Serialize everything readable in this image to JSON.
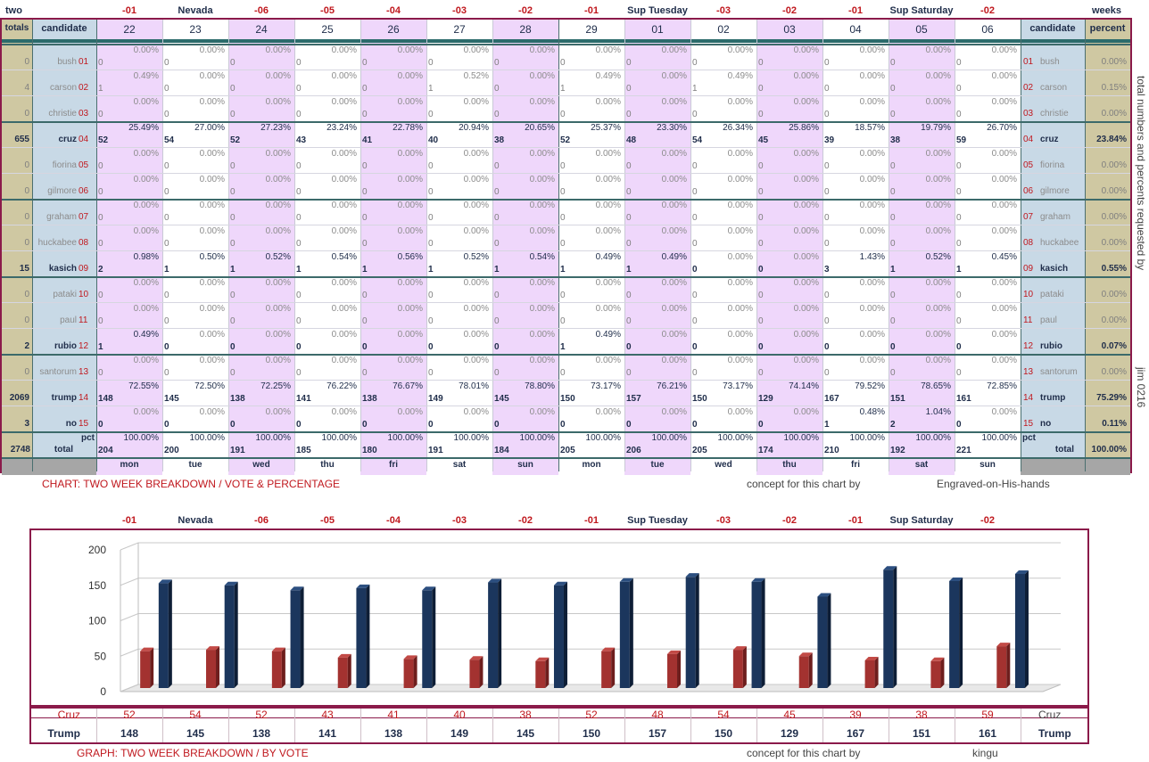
{
  "top_labels": {
    "left": "two",
    "right": "weeks",
    "days": [
      "-01",
      "Nevada",
      "-06",
      "-05",
      "-04",
      "-03",
      "-02",
      "-01",
      "Sup Tuesday",
      "-03",
      "-02",
      "-01",
      "Sup Saturday",
      "-02"
    ]
  },
  "header": {
    "totals": "totals",
    "candidate": "candidate",
    "candidate_right": "candidate",
    "percent": "percent",
    "dates": [
      "22",
      "23",
      "24",
      "25",
      "26",
      "27",
      "28",
      "29",
      "01",
      "02",
      "03",
      "04",
      "05",
      "06"
    ]
  },
  "rows": [
    {
      "num": "01",
      "name": "bush",
      "total": "0",
      "pct": "0.00%",
      "active": false,
      "votes": [
        "0",
        "0",
        "0",
        "0",
        "0",
        "0",
        "0",
        "0",
        "0",
        "0",
        "0",
        "0",
        "0",
        "0"
      ],
      "pcts": [
        "0.00%",
        "0.00%",
        "0.00%",
        "0.00%",
        "0.00%",
        "0.00%",
        "0.00%",
        "0.00%",
        "0.00%",
        "0.00%",
        "0.00%",
        "0.00%",
        "0.00%",
        "0.00%"
      ]
    },
    {
      "num": "02",
      "name": "carson",
      "total": "4",
      "pct": "0.15%",
      "active": false,
      "votes": [
        "1",
        "0",
        "0",
        "0",
        "0",
        "1",
        "0",
        "1",
        "0",
        "1",
        "0",
        "0",
        "0",
        "0"
      ],
      "pcts": [
        "0.49%",
        "0.00%",
        "0.00%",
        "0.00%",
        "0.00%",
        "0.52%",
        "0.00%",
        "0.49%",
        "0.00%",
        "0.49%",
        "0.00%",
        "0.00%",
        "0.00%",
        "0.00%"
      ]
    },
    {
      "num": "03",
      "name": "christie",
      "total": "0",
      "pct": "0.00%",
      "active": false,
      "votes": [
        "0",
        "0",
        "0",
        "0",
        "0",
        "0",
        "0",
        "0",
        "0",
        "0",
        "0",
        "0",
        "0",
        "0"
      ],
      "pcts": [
        "0.00%",
        "0.00%",
        "0.00%",
        "0.00%",
        "0.00%",
        "0.00%",
        "0.00%",
        "0.00%",
        "0.00%",
        "0.00%",
        "0.00%",
        "0.00%",
        "0.00%",
        "0.00%"
      ]
    },
    {
      "num": "04",
      "name": "cruz",
      "total": "655",
      "pct": "23.84%",
      "active": true,
      "votes": [
        "52",
        "54",
        "52",
        "43",
        "41",
        "40",
        "38",
        "52",
        "48",
        "54",
        "45",
        "39",
        "38",
        "59"
      ],
      "pcts": [
        "25.49%",
        "27.00%",
        "27.23%",
        "23.24%",
        "22.78%",
        "20.94%",
        "20.65%",
        "25.37%",
        "23.30%",
        "26.34%",
        "25.86%",
        "18.57%",
        "19.79%",
        "26.70%"
      ]
    },
    {
      "num": "05",
      "name": "fiorina",
      "total": "0",
      "pct": "0.00%",
      "active": false,
      "votes": [
        "0",
        "0",
        "0",
        "0",
        "0",
        "0",
        "0",
        "0",
        "0",
        "0",
        "0",
        "0",
        "0",
        "0"
      ],
      "pcts": [
        "0.00%",
        "0.00%",
        "0.00%",
        "0.00%",
        "0.00%",
        "0.00%",
        "0.00%",
        "0.00%",
        "0.00%",
        "0.00%",
        "0.00%",
        "0.00%",
        "0.00%",
        "0.00%"
      ]
    },
    {
      "num": "06",
      "name": "gilmore",
      "total": "0",
      "pct": "0.00%",
      "active": false,
      "votes": [
        "0",
        "0",
        "0",
        "0",
        "0",
        "0",
        "0",
        "0",
        "0",
        "0",
        "0",
        "0",
        "0",
        "0"
      ],
      "pcts": [
        "0.00%",
        "0.00%",
        "0.00%",
        "0.00%",
        "0.00%",
        "0.00%",
        "0.00%",
        "0.00%",
        "0.00%",
        "0.00%",
        "0.00%",
        "0.00%",
        "0.00%",
        "0.00%"
      ]
    },
    {
      "num": "07",
      "name": "graham",
      "total": "0",
      "pct": "0.00%",
      "active": false,
      "votes": [
        "0",
        "0",
        "0",
        "0",
        "0",
        "0",
        "0",
        "0",
        "0",
        "0",
        "0",
        "0",
        "0",
        "0"
      ],
      "pcts": [
        "0.00%",
        "0.00%",
        "0.00%",
        "0.00%",
        "0.00%",
        "0.00%",
        "0.00%",
        "0.00%",
        "0.00%",
        "0.00%",
        "0.00%",
        "0.00%",
        "0.00%",
        "0.00%"
      ]
    },
    {
      "num": "08",
      "name": "huckabee",
      "total": "0",
      "pct": "0.00%",
      "active": false,
      "votes": [
        "0",
        "0",
        "0",
        "0",
        "0",
        "0",
        "0",
        "0",
        "0",
        "0",
        "0",
        "0",
        "0",
        "0"
      ],
      "pcts": [
        "0.00%",
        "0.00%",
        "0.00%",
        "0.00%",
        "0.00%",
        "0.00%",
        "0.00%",
        "0.00%",
        "0.00%",
        "0.00%",
        "0.00%",
        "0.00%",
        "0.00%",
        "0.00%"
      ]
    },
    {
      "num": "09",
      "name": "kasich",
      "total": "15",
      "pct": "0.55%",
      "active": true,
      "votes": [
        "2",
        "1",
        "1",
        "1",
        "1",
        "1",
        "1",
        "1",
        "1",
        "0",
        "0",
        "3",
        "1",
        "1"
      ],
      "pcts": [
        "0.98%",
        "0.50%",
        "0.52%",
        "0.54%",
        "0.56%",
        "0.52%",
        "0.54%",
        "0.49%",
        "0.49%",
        "0.00%",
        "0.00%",
        "1.43%",
        "0.52%",
        "0.45%"
      ]
    },
    {
      "num": "10",
      "name": "pataki",
      "total": "0",
      "pct": "0.00%",
      "active": false,
      "votes": [
        "0",
        "0",
        "0",
        "0",
        "0",
        "0",
        "0",
        "0",
        "0",
        "0",
        "0",
        "0",
        "0",
        "0"
      ],
      "pcts": [
        "0.00%",
        "0.00%",
        "0.00%",
        "0.00%",
        "0.00%",
        "0.00%",
        "0.00%",
        "0.00%",
        "0.00%",
        "0.00%",
        "0.00%",
        "0.00%",
        "0.00%",
        "0.00%"
      ]
    },
    {
      "num": "11",
      "name": "paul",
      "total": "0",
      "pct": "0.00%",
      "active": false,
      "votes": [
        "0",
        "0",
        "0",
        "0",
        "0",
        "0",
        "0",
        "0",
        "0",
        "0",
        "0",
        "0",
        "0",
        "0"
      ],
      "pcts": [
        "0.00%",
        "0.00%",
        "0.00%",
        "0.00%",
        "0.00%",
        "0.00%",
        "0.00%",
        "0.00%",
        "0.00%",
        "0.00%",
        "0.00%",
        "0.00%",
        "0.00%",
        "0.00%"
      ]
    },
    {
      "num": "12",
      "name": "rubio",
      "total": "2",
      "pct": "0.07%",
      "active": true,
      "votes": [
        "1",
        "0",
        "0",
        "0",
        "0",
        "0",
        "0",
        "1",
        "0",
        "0",
        "0",
        "0",
        "0",
        "0"
      ],
      "pcts": [
        "0.49%",
        "0.00%",
        "0.00%",
        "0.00%",
        "0.00%",
        "0.00%",
        "0.00%",
        "0.49%",
        "0.00%",
        "0.00%",
        "0.00%",
        "0.00%",
        "0.00%",
        "0.00%"
      ]
    },
    {
      "num": "13",
      "name": "santorum",
      "total": "0",
      "pct": "0.00%",
      "active": false,
      "votes": [
        "0",
        "0",
        "0",
        "0",
        "0",
        "0",
        "0",
        "0",
        "0",
        "0",
        "0",
        "0",
        "0",
        "0"
      ],
      "pcts": [
        "0.00%",
        "0.00%",
        "0.00%",
        "0.00%",
        "0.00%",
        "0.00%",
        "0.00%",
        "0.00%",
        "0.00%",
        "0.00%",
        "0.00%",
        "0.00%",
        "0.00%",
        "0.00%"
      ]
    },
    {
      "num": "14",
      "name": "trump",
      "total": "2069",
      "pct": "75.29%",
      "active": true,
      "votes": [
        "148",
        "145",
        "138",
        "141",
        "138",
        "149",
        "145",
        "150",
        "157",
        "150",
        "129",
        "167",
        "151",
        "161"
      ],
      "pcts": [
        "72.55%",
        "72.50%",
        "72.25%",
        "76.22%",
        "76.67%",
        "78.01%",
        "78.80%",
        "73.17%",
        "76.21%",
        "73.17%",
        "74.14%",
        "79.52%",
        "78.65%",
        "72.85%"
      ]
    },
    {
      "num": "15",
      "name": "no",
      "total": "3",
      "pct": "0.11%",
      "active": true,
      "votes": [
        "0",
        "0",
        "0",
        "0",
        "0",
        "0",
        "0",
        "0",
        "0",
        "0",
        "0",
        "1",
        "2",
        "0"
      ],
      "pcts": [
        "0.00%",
        "0.00%",
        "0.00%",
        "0.00%",
        "0.00%",
        "0.00%",
        "0.00%",
        "0.00%",
        "0.00%",
        "0.00%",
        "0.00%",
        "0.48%",
        "1.04%",
        "0.00%"
      ]
    }
  ],
  "total_row": {
    "total": "2748",
    "label": "total",
    "pct_label": "pct",
    "label_right": "total",
    "pct_right": "100.00%",
    "votes": [
      "204",
      "200",
      "191",
      "185",
      "180",
      "191",
      "184",
      "205",
      "206",
      "205",
      "174",
      "210",
      "192",
      "221"
    ],
    "pcts": [
      "100.00%",
      "100.00%",
      "100.00%",
      "100.00%",
      "100.00%",
      "100.00%",
      "100.00%",
      "100.00%",
      "100.00%",
      "100.00%",
      "100.00%",
      "100.00%",
      "100.00%",
      "100.00%"
    ]
  },
  "weekdays": [
    "mon",
    "tue",
    "wed",
    "thu",
    "fri",
    "sat",
    "sun",
    "mon",
    "tue",
    "wed",
    "thu",
    "fri",
    "sat",
    "sun"
  ],
  "side_vertical": "total numbers and percents requested by",
  "side_vertical2": "jim 0216",
  "captions": {
    "chart1": "CHART: TWO WEEK BREAKDOWN / VOTE & PERCENTAGE",
    "concept1": "concept for this chart by",
    "author1": "Engraved-on-His-hands",
    "chart2": "GRAPH: TWO WEEK BREAKDOWN / BY VOTE",
    "concept2": "concept for this chart by",
    "author2": "kingu"
  },
  "colors": {
    "cruz": "#a33230",
    "trump": "#1b365d",
    "frame": "#8b1a4a",
    "purple": "#efd7fb",
    "side": "#cfc8a2",
    "cand": "#c8d9e6"
  },
  "chart_data": {
    "type": "bar",
    "categories": [
      "-01",
      "Nevada",
      "-06",
      "-05",
      "-04",
      "-03",
      "-02",
      "-01",
      "Sup Tuesday",
      "-03",
      "-02",
      "-01",
      "Sup Saturday",
      "-02"
    ],
    "series": [
      {
        "name": "Cruz",
        "values": [
          52,
          54,
          52,
          43,
          41,
          40,
          38,
          52,
          48,
          54,
          45,
          39,
          38,
          59
        ]
      },
      {
        "name": "Trump",
        "values": [
          148,
          145,
          138,
          141,
          138,
          149,
          145,
          150,
          157,
          150,
          129,
          167,
          151,
          161
        ]
      }
    ],
    "yticks": [
      "0",
      "50",
      "100",
      "150",
      "200"
    ],
    "ylim": [
      0,
      200
    ],
    "grid": true,
    "legend_rows": {
      "cruz_label": "Cruz",
      "trump_label": "Trump",
      "cruz_right": "Cruz",
      "trump_right": "Trump"
    }
  }
}
